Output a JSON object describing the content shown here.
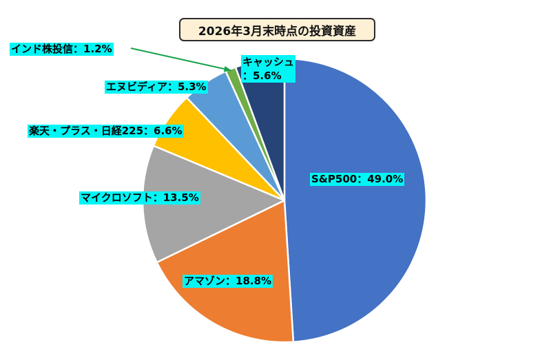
{
  "chart_data": {
    "type": "pie",
    "title": "2026年3月末時点の投資資産",
    "categories": [
      "S&P500",
      "アマゾン",
      "マイクロソフト",
      "楽天・プラス・日経225",
      "エヌビディア",
      "インド株投信",
      "キャッシュ"
    ],
    "values": [
      49.0,
      18.8,
      13.5,
      6.6,
      5.3,
      1.2,
      5.6
    ],
    "colors": [
      "#4472c4",
      "#ed7d31",
      "#a5a5a5",
      "#ffc000",
      "#5b9bd5",
      "#70ad47",
      "#264478"
    ],
    "labels": [
      "S&P500：49.0%",
      "アマゾン：18.8%",
      "マイクロソフト：13.5%",
      "楽天・プラス・日経225：6.6%",
      "エヌビディア：5.3%",
      "インド株投信：1.2%",
      "キャッシュ：5.6%"
    ],
    "label_lines": {
      "cash": [
        "キャッシュ",
        "：5.6%"
      ]
    },
    "start_angle_deg": 0,
    "direction": "clockwise",
    "leader_line_color": "#17a34a"
  }
}
